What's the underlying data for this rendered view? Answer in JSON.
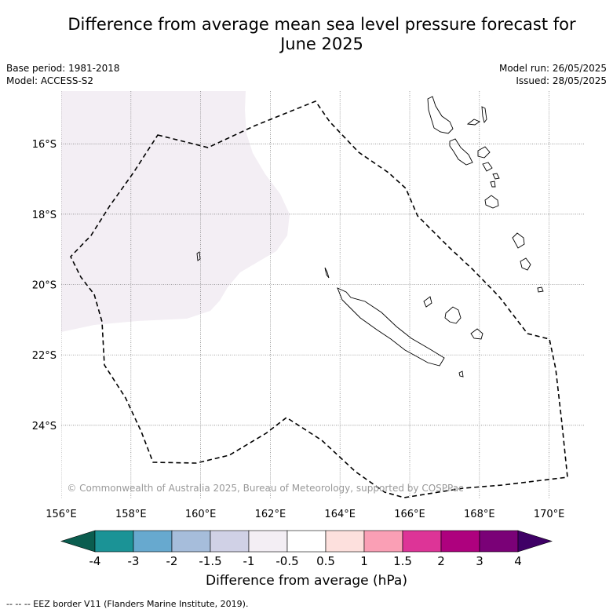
{
  "title_line1": "Difference from average mean sea level pressure forecast for",
  "title_line2": "June 2025",
  "base_period": "Base period: 1981-2018",
  "model": "Model: ACCESS-S2",
  "model_run": "Model run: 26/05/2025",
  "issued": "Issued: 28/05/2025",
  "copyright": "© Commonwealth of Australia 2025, Bureau of Meteorology, supported by COSPPac",
  "colorbar_title": "Difference from average (hPa)",
  "footnote": "-- -- -- EEZ border V11 (Flanders Marine Institute, 2019).",
  "map": {
    "lon_range": [
      156,
      171
    ],
    "lat_range": [
      -14.5,
      -26.1
    ],
    "lon_ticks": [
      {
        "value": 156,
        "label": "156°E"
      },
      {
        "value": 158,
        "label": "158°E"
      },
      {
        "value": 160,
        "label": "160°E"
      },
      {
        "value": 162,
        "label": "162°E"
      },
      {
        "value": 164,
        "label": "164°E"
      },
      {
        "value": 166,
        "label": "166°E"
      },
      {
        "value": 168,
        "label": "168°E"
      },
      {
        "value": 170,
        "label": "170°E"
      }
    ],
    "lat_ticks": [
      {
        "value": -16,
        "label": "16°S"
      },
      {
        "value": -18,
        "label": "18°S"
      },
      {
        "value": -20,
        "label": "20°S"
      },
      {
        "value": -22,
        "label": "22°S"
      },
      {
        "value": -24,
        "label": "24°S"
      }
    ],
    "anomaly_region_color": "#f3eef4",
    "anomaly_region_category": "-1 to -0.5 hPa"
  },
  "colorbar": {
    "low_extend_color": "#0b5d4f",
    "high_extend_color": "#3f0066",
    "bins": [
      {
        "color": "#1b9396"
      },
      {
        "color": "#67a9cf"
      },
      {
        "color": "#a6bddb"
      },
      {
        "color": "#d0d1e6"
      },
      {
        "color": "#f3eef4"
      },
      {
        "color": "#ffffff"
      },
      {
        "color": "#fde0dd"
      },
      {
        "color": "#fa9fb5"
      },
      {
        "color": "#dd3497"
      },
      {
        "color": "#ae017e"
      },
      {
        "color": "#7a0177"
      }
    ],
    "tick_labels": [
      "-4",
      "-3",
      "-2",
      "-1.5",
      "-1",
      "-0.5",
      "0.5",
      "1",
      "1.5",
      "2",
      "3",
      "4"
    ]
  }
}
